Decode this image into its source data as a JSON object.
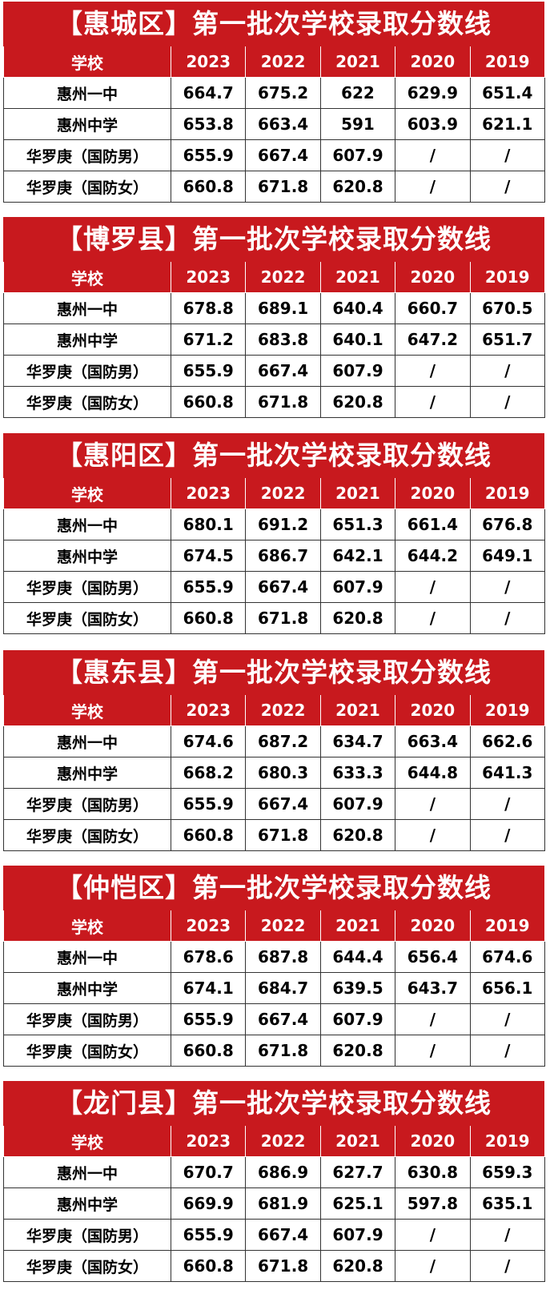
{
  "header_label": "学校",
  "years": [
    "2023",
    "2022",
    "2021",
    "2020",
    "2019"
  ],
  "tables": [
    {
      "title": "【惠城区】第一批次学校录取分数线",
      "rows": [
        {
          "school": "惠州一中",
          "scores": [
            "664.7",
            "675.2",
            "622",
            "629.9",
            "651.4"
          ]
        },
        {
          "school": "惠州中学",
          "scores": [
            "653.8",
            "663.4",
            "591",
            "603.9",
            "621.1"
          ]
        },
        {
          "school": "华罗庚（国防男）",
          "scores": [
            "655.9",
            "667.4",
            "607.9",
            "/",
            "/"
          ]
        },
        {
          "school": "华罗庚（国防女）",
          "scores": [
            "660.8",
            "671.8",
            "620.8",
            "/",
            "/"
          ]
        }
      ]
    },
    {
      "title": "【博罗县】第一批次学校录取分数线",
      "rows": [
        {
          "school": "惠州一中",
          "scores": [
            "678.8",
            "689.1",
            "640.4",
            "660.7",
            "670.5"
          ]
        },
        {
          "school": "惠州中学",
          "scores": [
            "671.2",
            "683.8",
            "640.1",
            "647.2",
            "651.7"
          ]
        },
        {
          "school": "华罗庚（国防男）",
          "scores": [
            "655.9",
            "667.4",
            "607.9",
            "/",
            "/"
          ]
        },
        {
          "school": "华罗庚（国防女）",
          "scores": [
            "660.8",
            "671.8",
            "620.8",
            "/",
            "/"
          ]
        }
      ]
    },
    {
      "title": "【惠阳区】第一批次学校录取分数线",
      "rows": [
        {
          "school": "惠州一中",
          "scores": [
            "680.1",
            "691.2",
            "651.3",
            "661.4",
            "676.8"
          ]
        },
        {
          "school": "惠州中学",
          "scores": [
            "674.5",
            "686.7",
            "642.1",
            "644.2",
            "649.1"
          ]
        },
        {
          "school": "华罗庚（国防男）",
          "scores": [
            "655.9",
            "667.4",
            "607.9",
            "/",
            "/"
          ]
        },
        {
          "school": "华罗庚（国防女）",
          "scores": [
            "660.8",
            "671.8",
            "620.8",
            "/",
            "/"
          ]
        }
      ]
    },
    {
      "title": "【惠东县】第一批次学校录取分数线",
      "rows": [
        {
          "school": "惠州一中",
          "scores": [
            "674.6",
            "687.2",
            "634.7",
            "663.4",
            "662.6"
          ]
        },
        {
          "school": "惠州中学",
          "scores": [
            "668.2",
            "680.3",
            "633.3",
            "644.8",
            "641.3"
          ]
        },
        {
          "school": "华罗庚（国防男）",
          "scores": [
            "655.9",
            "667.4",
            "607.9",
            "/",
            "/"
          ]
        },
        {
          "school": "华罗庚（国防女）",
          "scores": [
            "660.8",
            "671.8",
            "620.8",
            "/",
            "/"
          ]
        }
      ]
    },
    {
      "title": "【仲恺区】第一批次学校录取分数线",
      "rows": [
        {
          "school": "惠州一中",
          "scores": [
            "678.6",
            "687.8",
            "644.4",
            "656.4",
            "674.6"
          ]
        },
        {
          "school": "惠州中学",
          "scores": [
            "674.1",
            "684.7",
            "639.5",
            "643.7",
            "656.1"
          ]
        },
        {
          "school": "华罗庚（国防男）",
          "scores": [
            "655.9",
            "667.4",
            "607.9",
            "/",
            "/"
          ]
        },
        {
          "school": "华罗庚（国防女）",
          "scores": [
            "660.8",
            "671.8",
            "620.8",
            "/",
            "/"
          ]
        }
      ]
    },
    {
      "title": "【龙门县】第一批次学校录取分数线",
      "rows": [
        {
          "school": "惠州一中",
          "scores": [
            "670.7",
            "686.9",
            "627.7",
            "630.8",
            "659.3"
          ]
        },
        {
          "school": "惠州中学",
          "scores": [
            "669.9",
            "681.9",
            "625.1",
            "597.8",
            "635.1"
          ]
        },
        {
          "school": "华罗庚（国防男）",
          "scores": [
            "655.9",
            "667.4",
            "607.9",
            "/",
            "/"
          ]
        },
        {
          "school": "华罗庚（国防女）",
          "scores": [
            "660.8",
            "671.8",
            "620.8",
            "/",
            "/"
          ]
        }
      ]
    }
  ]
}
